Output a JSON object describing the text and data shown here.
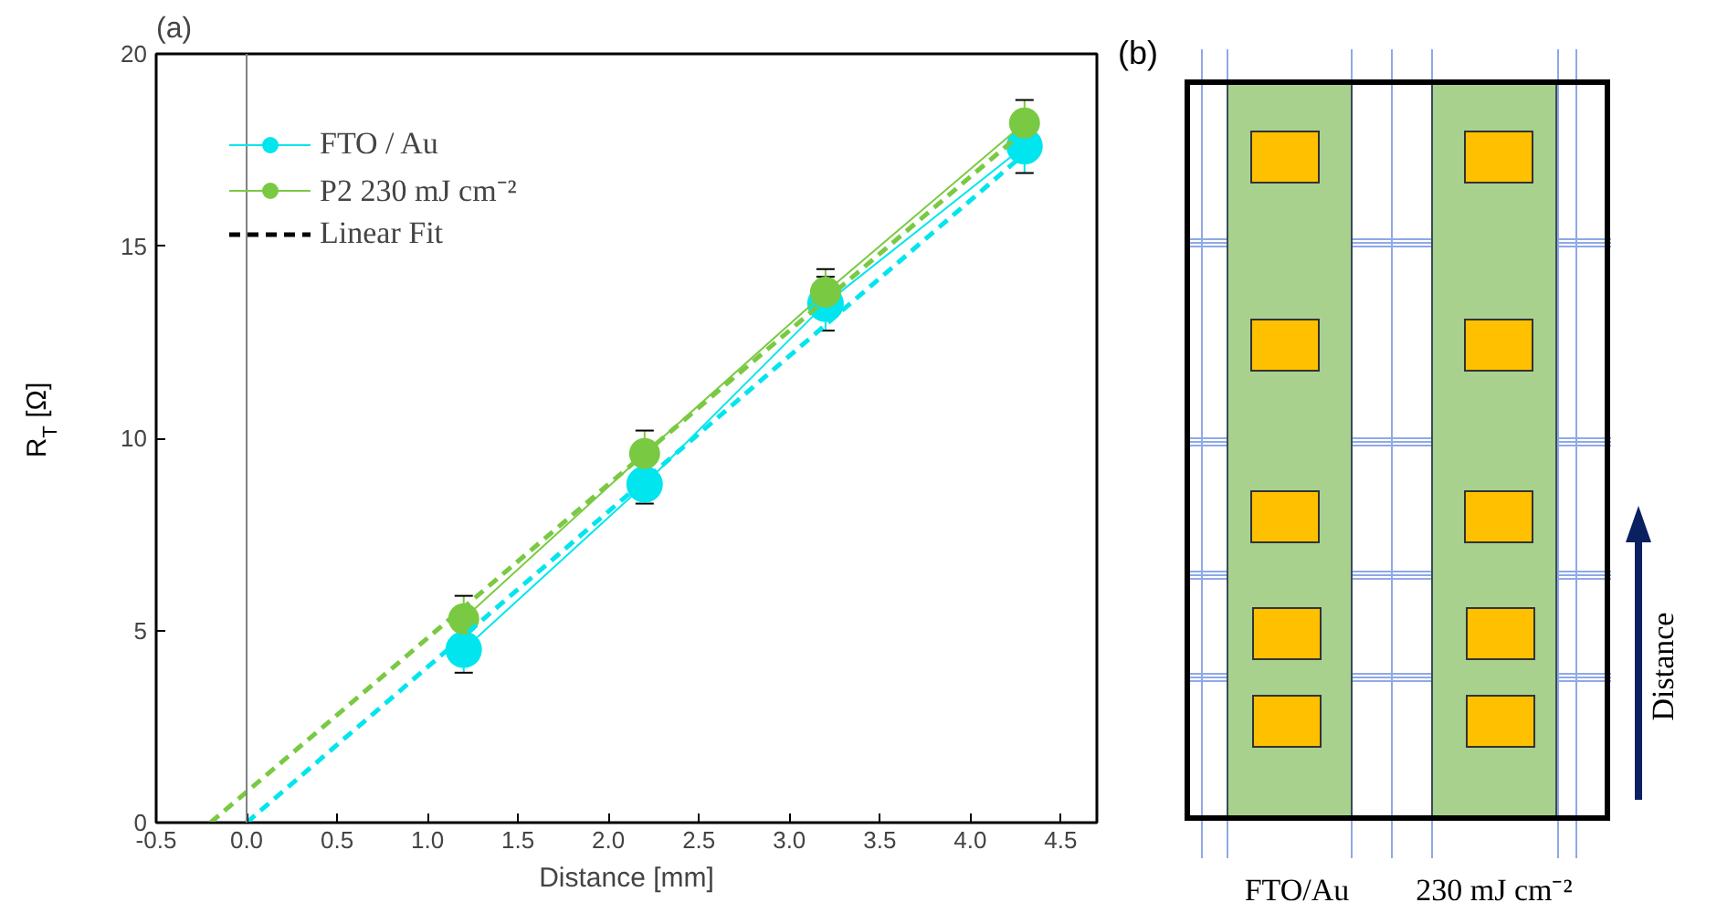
{
  "chart_data": [
    {
      "type": "line",
      "title": "(a)",
      "xlabel": "Distance [mm]",
      "ylabel": "R$_{T}$ [Ω]",
      "xlim": [
        -0.5,
        4.7
      ],
      "ylim": [
        0,
        20
      ],
      "xticks": [
        -0.5,
        {
          "value": 0,
          "label": "0.0"
        },
        0.5,
        {
          "value": 1,
          "label": "1.0"
        },
        1.5,
        {
          "value": 2,
          "label": "2.0"
        },
        2.5,
        {
          "value": 3,
          "label": "3.0"
        },
        3.5,
        {
          "value": 4,
          "label": "4.0"
        },
        4.5
      ],
      "yticks": [
        0,
        5,
        10,
        15,
        20
      ],
      "grid": false,
      "legend": "top left",
      "marker": "circle",
      "ref_lines": [
        {
          "axis": "x",
          "value": 0,
          "color": "#808080"
        }
      ],
      "series": [
        {
          "name": "FTO / Au",
          "color": "#00e5ee",
          "line_style": "solid",
          "x": [
            1.2,
            2.2,
            3.2,
            4.3
          ],
          "values": [
            4.5,
            8.8,
            13.5,
            17.6
          ],
          "errors": [
            0.6,
            0.5,
            0.7,
            0.7
          ]
        },
        {
          "name": "P2 230 mJ cm⁻²",
          "color": "#7ac943",
          "line_style": "solid",
          "x": [
            1.2,
            2.2,
            3.2,
            4.3
          ],
          "values": [
            5.3,
            9.6,
            13.8,
            18.2
          ],
          "errors": [
            0.6,
            0.6,
            0.6,
            0.6
          ]
        },
        {
          "name": "Linear Fit",
          "color": "#000000",
          "line_style": "dashed",
          "marker": "none"
        },
        {
          "color": "#00e5ee",
          "line_style": "dashed",
          "marker": "none",
          "x": [
            0.0,
            4.3
          ],
          "values": [
            0.0,
            17.4
          ]
        },
        {
          "color": "#7ac943",
          "line_style": "dashed",
          "marker": "none",
          "x": [
            -0.2,
            4.3
          ],
          "values": [
            0.0,
            18.0
          ]
        }
      ]
    },
    {
      "type": "other",
      "title": "(b)",
      "annotations": [
        "FTO/Au",
        "230 mJ cm⁻²",
        "Distance"
      ]
    }
  ]
}
